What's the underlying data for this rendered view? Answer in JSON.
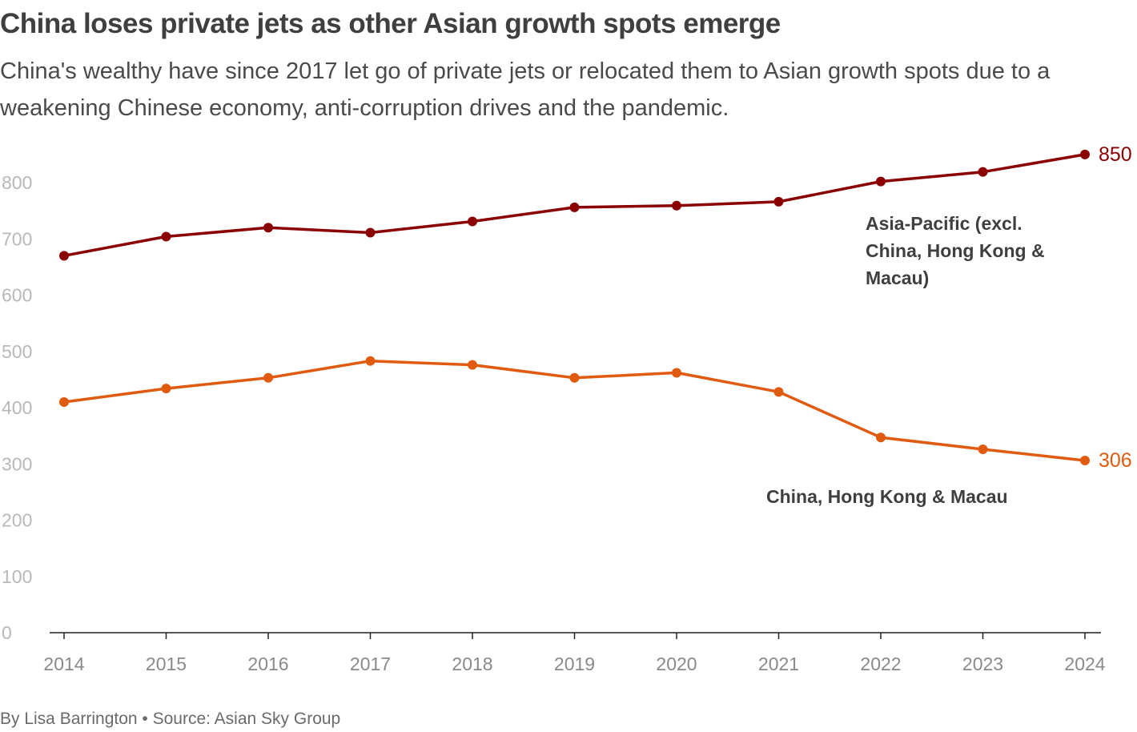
{
  "title": "China loses private jets as other Asian growth spots emerge",
  "subtitle": "China's wealthy have since 2017 let go of private jets or relocated them to Asian growth spots due to a weakening Chinese economy, anti-corruption drives and the pandemic.",
  "footer": "By Lisa Barrington • Source: Asian Sky Group",
  "chart_data": {
    "type": "line",
    "title": "China loses private jets as other Asian growth spots emerge",
    "xlabel": "",
    "ylabel": "",
    "x": [
      "2014",
      "2015",
      "2016",
      "2017",
      "2018",
      "2019",
      "2020",
      "2021",
      "2022",
      "2023",
      "2024"
    ],
    "ylim": [
      0,
      850
    ],
    "yticks": [
      "0",
      "100",
      "200",
      "300",
      "400",
      "500",
      "600",
      "700",
      "800"
    ],
    "grid": false,
    "series": [
      {
        "name": "Asia-Pacific (excl. China, Hong Kong & Macau)",
        "label_lines": [
          "Asia-Pacific (excl.",
          "China, Hong Kong &",
          "Macau)"
        ],
        "color": "#8b0000",
        "values": [
          670,
          704,
          720,
          711,
          731,
          756,
          759,
          766,
          802,
          819,
          850
        ],
        "end_label": "850"
      },
      {
        "name": "China, Hong Kong & Macau",
        "label_lines": [
          "China, Hong Kong & Macau"
        ],
        "color": "#e05a10",
        "values": [
          410,
          434,
          453,
          483,
          476,
          453,
          462,
          428,
          347,
          326,
          306
        ],
        "end_label": "306"
      }
    ]
  }
}
